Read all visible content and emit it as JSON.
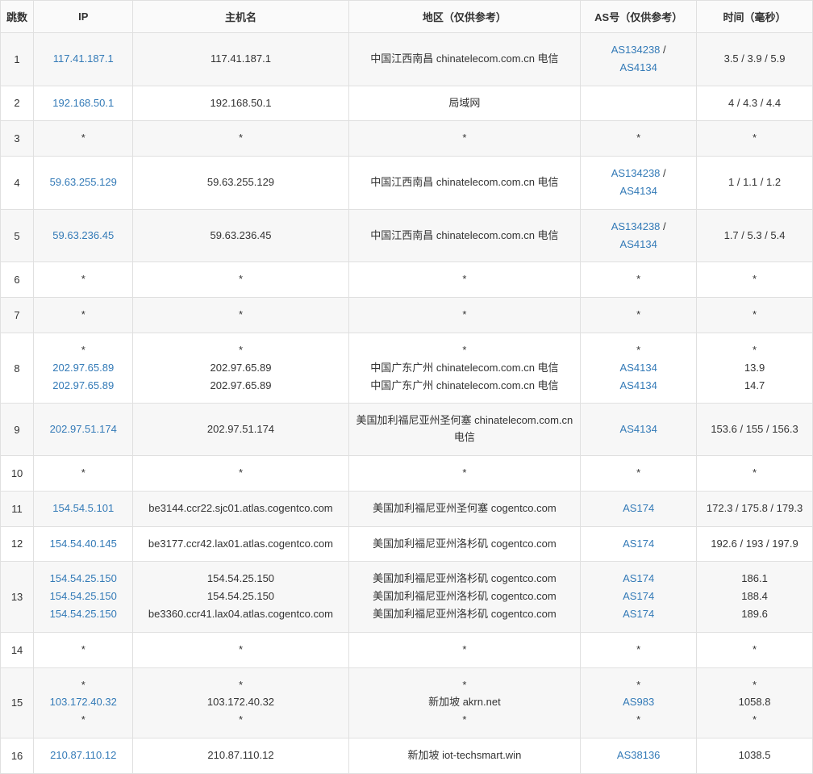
{
  "colors": {
    "link": "#337ab7",
    "border": "#e0e0e0",
    "header_bg": "#fafafa",
    "row_odd_bg": "#f7f7f7",
    "row_even_bg": "#ffffff",
    "text": "#333333"
  },
  "headers": {
    "hop": "跳数",
    "ip": "IP",
    "hostname": "主机名",
    "region": "地区（仅供参考）",
    "as": "AS号（仅供参考）",
    "time": "时间（毫秒）"
  },
  "rows": [
    {
      "hop": "1",
      "ip": [
        {
          "text": "117.41.187.1",
          "link": true
        }
      ],
      "hostname": [
        {
          "text": "117.41.187.1",
          "link": false
        }
      ],
      "region": [
        {
          "text": "中国江西南昌 chinatelecom.com.cn 电信",
          "link": false
        }
      ],
      "as": [
        {
          "parts": [
            {
              "text": "AS134238",
              "link": true
            },
            {
              "text": " / ",
              "link": false
            }
          ],
          "break": true
        },
        {
          "parts": [
            {
              "text": "AS4134",
              "link": true
            }
          ]
        }
      ],
      "time": [
        {
          "text": "3.5 / 3.9 / 5.9",
          "link": false
        }
      ]
    },
    {
      "hop": "2",
      "ip": [
        {
          "text": "192.168.50.1",
          "link": true
        }
      ],
      "hostname": [
        {
          "text": "192.168.50.1",
          "link": false
        }
      ],
      "region": [
        {
          "text": "局域网",
          "link": false
        }
      ],
      "as": [
        {
          "text": "",
          "link": false
        }
      ],
      "time": [
        {
          "text": "4 / 4.3 / 4.4",
          "link": false
        }
      ]
    },
    {
      "hop": "3",
      "ip": [
        {
          "text": "*",
          "link": false
        }
      ],
      "hostname": [
        {
          "text": "*",
          "link": false
        }
      ],
      "region": [
        {
          "text": "*",
          "link": false
        }
      ],
      "as": [
        {
          "text": "*",
          "link": false
        }
      ],
      "time": [
        {
          "text": "*",
          "link": false
        }
      ]
    },
    {
      "hop": "4",
      "ip": [
        {
          "text": "59.63.255.129",
          "link": true
        }
      ],
      "hostname": [
        {
          "text": "59.63.255.129",
          "link": false
        }
      ],
      "region": [
        {
          "text": "中国江西南昌 chinatelecom.com.cn 电信",
          "link": false
        }
      ],
      "as": [
        {
          "parts": [
            {
              "text": "AS134238",
              "link": true
            },
            {
              "text": " / ",
              "link": false
            }
          ],
          "break": true
        },
        {
          "parts": [
            {
              "text": "AS4134",
              "link": true
            }
          ]
        }
      ],
      "time": [
        {
          "text": "1 / 1.1 / 1.2",
          "link": false
        }
      ]
    },
    {
      "hop": "5",
      "ip": [
        {
          "text": "59.63.236.45",
          "link": true
        }
      ],
      "hostname": [
        {
          "text": "59.63.236.45",
          "link": false
        }
      ],
      "region": [
        {
          "text": "中国江西南昌 chinatelecom.com.cn 电信",
          "link": false
        }
      ],
      "as": [
        {
          "parts": [
            {
              "text": "AS134238",
              "link": true
            },
            {
              "text": " / ",
              "link": false
            }
          ],
          "break": true
        },
        {
          "parts": [
            {
              "text": "AS4134",
              "link": true
            }
          ]
        }
      ],
      "time": [
        {
          "text": "1.7 / 5.3 / 5.4",
          "link": false
        }
      ]
    },
    {
      "hop": "6",
      "ip": [
        {
          "text": "*",
          "link": false
        }
      ],
      "hostname": [
        {
          "text": "*",
          "link": false
        }
      ],
      "region": [
        {
          "text": "*",
          "link": false
        }
      ],
      "as": [
        {
          "text": "*",
          "link": false
        }
      ],
      "time": [
        {
          "text": "*",
          "link": false
        }
      ]
    },
    {
      "hop": "7",
      "ip": [
        {
          "text": "*",
          "link": false
        }
      ],
      "hostname": [
        {
          "text": "*",
          "link": false
        }
      ],
      "region": [
        {
          "text": "*",
          "link": false
        }
      ],
      "as": [
        {
          "text": "*",
          "link": false
        }
      ],
      "time": [
        {
          "text": "*",
          "link": false
        }
      ]
    },
    {
      "hop": "8",
      "ip": [
        {
          "text": "*",
          "link": false
        },
        {
          "text": "202.97.65.89",
          "link": true
        },
        {
          "text": "202.97.65.89",
          "link": true
        }
      ],
      "hostname": [
        {
          "text": "*",
          "link": false
        },
        {
          "text": "202.97.65.89",
          "link": false
        },
        {
          "text": "202.97.65.89",
          "link": false
        }
      ],
      "region": [
        {
          "text": "*",
          "link": false
        },
        {
          "text": "中国广东广州 chinatelecom.com.cn 电信",
          "link": false
        },
        {
          "text": "中国广东广州 chinatelecom.com.cn 电信",
          "link": false
        }
      ],
      "as": [
        {
          "text": "*",
          "link": false
        },
        {
          "text": "AS4134",
          "link": true
        },
        {
          "text": "AS4134",
          "link": true
        }
      ],
      "time": [
        {
          "text": "*",
          "link": false
        },
        {
          "text": "13.9",
          "link": false
        },
        {
          "text": "14.7",
          "link": false
        }
      ]
    },
    {
      "hop": "9",
      "ip": [
        {
          "text": "202.97.51.174",
          "link": true
        }
      ],
      "hostname": [
        {
          "text": "202.97.51.174",
          "link": false
        }
      ],
      "region": [
        {
          "text": "美国加利福尼亚州圣何塞 chinatelecom.com.cn 电信",
          "link": false
        }
      ],
      "as": [
        {
          "text": "AS4134",
          "link": true
        }
      ],
      "time": [
        {
          "text": "153.6 / 155 / 156.3",
          "link": false
        }
      ]
    },
    {
      "hop": "10",
      "ip": [
        {
          "text": "*",
          "link": false
        }
      ],
      "hostname": [
        {
          "text": "*",
          "link": false
        }
      ],
      "region": [
        {
          "text": "*",
          "link": false
        }
      ],
      "as": [
        {
          "text": "*",
          "link": false
        }
      ],
      "time": [
        {
          "text": "*",
          "link": false
        }
      ]
    },
    {
      "hop": "11",
      "ip": [
        {
          "text": "154.54.5.101",
          "link": true
        }
      ],
      "hostname": [
        {
          "text": "be3144.ccr22.sjc01.atlas.cogentco.com",
          "link": false
        }
      ],
      "region": [
        {
          "text": "美国加利福尼亚州圣何塞 cogentco.com",
          "link": false
        }
      ],
      "as": [
        {
          "text": "AS174",
          "link": true
        }
      ],
      "time": [
        {
          "text": "172.3 / 175.8 / 179.3",
          "link": false
        }
      ]
    },
    {
      "hop": "12",
      "ip": [
        {
          "text": "154.54.40.145",
          "link": true
        }
      ],
      "hostname": [
        {
          "text": "be3177.ccr42.lax01.atlas.cogentco.com",
          "link": false
        }
      ],
      "region": [
        {
          "text": "美国加利福尼亚州洛杉矶 cogentco.com",
          "link": false
        }
      ],
      "as": [
        {
          "text": "AS174",
          "link": true
        }
      ],
      "time": [
        {
          "text": "192.6 / 193 / 197.9",
          "link": false
        }
      ]
    },
    {
      "hop": "13",
      "ip": [
        {
          "text": "154.54.25.150",
          "link": true
        },
        {
          "text": "154.54.25.150",
          "link": true
        },
        {
          "text": "154.54.25.150",
          "link": true
        }
      ],
      "hostname": [
        {
          "text": "154.54.25.150",
          "link": false
        },
        {
          "text": "154.54.25.150",
          "link": false
        },
        {
          "text": "be3360.ccr41.lax04.atlas.cogentco.com",
          "link": false
        }
      ],
      "region": [
        {
          "text": "美国加利福尼亚州洛杉矶 cogentco.com",
          "link": false
        },
        {
          "text": "美国加利福尼亚州洛杉矶 cogentco.com",
          "link": false
        },
        {
          "text": "美国加利福尼亚州洛杉矶 cogentco.com",
          "link": false
        }
      ],
      "as": [
        {
          "text": "AS174",
          "link": true
        },
        {
          "text": "AS174",
          "link": true
        },
        {
          "text": "AS174",
          "link": true
        }
      ],
      "time": [
        {
          "text": "186.1",
          "link": false
        },
        {
          "text": "188.4",
          "link": false
        },
        {
          "text": "189.6",
          "link": false
        }
      ]
    },
    {
      "hop": "14",
      "ip": [
        {
          "text": "*",
          "link": false
        }
      ],
      "hostname": [
        {
          "text": "*",
          "link": false
        }
      ],
      "region": [
        {
          "text": "*",
          "link": false
        }
      ],
      "as": [
        {
          "text": "*",
          "link": false
        }
      ],
      "time": [
        {
          "text": "*",
          "link": false
        }
      ]
    },
    {
      "hop": "15",
      "ip": [
        {
          "text": "*",
          "link": false
        },
        {
          "text": "103.172.40.32",
          "link": true
        },
        {
          "text": "*",
          "link": false
        }
      ],
      "hostname": [
        {
          "text": "*",
          "link": false
        },
        {
          "text": "103.172.40.32",
          "link": false
        },
        {
          "text": "*",
          "link": false
        }
      ],
      "region": [
        {
          "text": "*",
          "link": false
        },
        {
          "text": "新加坡 akrn.net",
          "link": false
        },
        {
          "text": "*",
          "link": false
        }
      ],
      "as": [
        {
          "text": "*",
          "link": false
        },
        {
          "text": "AS983",
          "link": true
        },
        {
          "text": "*",
          "link": false
        }
      ],
      "time": [
        {
          "text": "*",
          "link": false
        },
        {
          "text": "1058.8",
          "link": false
        },
        {
          "text": "*",
          "link": false
        }
      ]
    },
    {
      "hop": "16",
      "ip": [
        {
          "text": "210.87.110.12",
          "link": true
        }
      ],
      "hostname": [
        {
          "text": "210.87.110.12",
          "link": false
        }
      ],
      "region": [
        {
          "text": "新加坡 iot-techsmart.win",
          "link": false
        }
      ],
      "as": [
        {
          "text": "AS38136",
          "link": true
        }
      ],
      "time": [
        {
          "text": "1038.5",
          "link": false
        }
      ]
    }
  ]
}
